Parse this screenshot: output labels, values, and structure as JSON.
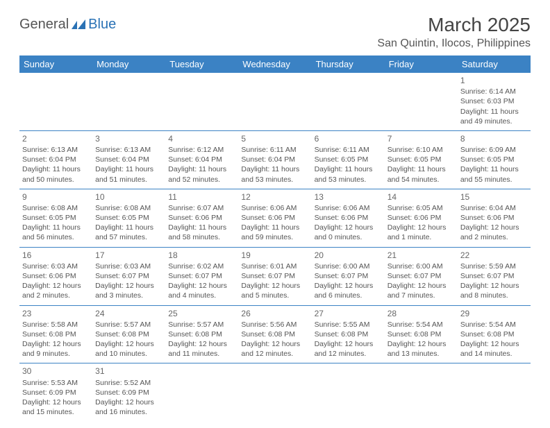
{
  "logo": {
    "text1": "General",
    "text2": "Blue"
  },
  "title": "March 2025",
  "location": "San Quintin, Ilocos, Philippines",
  "colors": {
    "header_bg": "#3b82c4",
    "header_fg": "#ffffff",
    "border": "#3b82c4",
    "logo_blue": "#2a72b5",
    "text": "#555555"
  },
  "dayHeaders": [
    "Sunday",
    "Monday",
    "Tuesday",
    "Wednesday",
    "Thursday",
    "Friday",
    "Saturday"
  ],
  "weeks": [
    [
      null,
      null,
      null,
      null,
      null,
      null,
      {
        "n": "1",
        "sr": "6:14 AM",
        "ss": "6:03 PM",
        "dl": "11 hours and 49 minutes."
      }
    ],
    [
      {
        "n": "2",
        "sr": "6:13 AM",
        "ss": "6:04 PM",
        "dl": "11 hours and 50 minutes."
      },
      {
        "n": "3",
        "sr": "6:13 AM",
        "ss": "6:04 PM",
        "dl": "11 hours and 51 minutes."
      },
      {
        "n": "4",
        "sr": "6:12 AM",
        "ss": "6:04 PM",
        "dl": "11 hours and 52 minutes."
      },
      {
        "n": "5",
        "sr": "6:11 AM",
        "ss": "6:04 PM",
        "dl": "11 hours and 53 minutes."
      },
      {
        "n": "6",
        "sr": "6:11 AM",
        "ss": "6:05 PM",
        "dl": "11 hours and 53 minutes."
      },
      {
        "n": "7",
        "sr": "6:10 AM",
        "ss": "6:05 PM",
        "dl": "11 hours and 54 minutes."
      },
      {
        "n": "8",
        "sr": "6:09 AM",
        "ss": "6:05 PM",
        "dl": "11 hours and 55 minutes."
      }
    ],
    [
      {
        "n": "9",
        "sr": "6:08 AM",
        "ss": "6:05 PM",
        "dl": "11 hours and 56 minutes."
      },
      {
        "n": "10",
        "sr": "6:08 AM",
        "ss": "6:05 PM",
        "dl": "11 hours and 57 minutes."
      },
      {
        "n": "11",
        "sr": "6:07 AM",
        "ss": "6:06 PM",
        "dl": "11 hours and 58 minutes."
      },
      {
        "n": "12",
        "sr": "6:06 AM",
        "ss": "6:06 PM",
        "dl": "11 hours and 59 minutes."
      },
      {
        "n": "13",
        "sr": "6:06 AM",
        "ss": "6:06 PM",
        "dl": "12 hours and 0 minutes."
      },
      {
        "n": "14",
        "sr": "6:05 AM",
        "ss": "6:06 PM",
        "dl": "12 hours and 1 minute."
      },
      {
        "n": "15",
        "sr": "6:04 AM",
        "ss": "6:06 PM",
        "dl": "12 hours and 2 minutes."
      }
    ],
    [
      {
        "n": "16",
        "sr": "6:03 AM",
        "ss": "6:06 PM",
        "dl": "12 hours and 2 minutes."
      },
      {
        "n": "17",
        "sr": "6:03 AM",
        "ss": "6:07 PM",
        "dl": "12 hours and 3 minutes."
      },
      {
        "n": "18",
        "sr": "6:02 AM",
        "ss": "6:07 PM",
        "dl": "12 hours and 4 minutes."
      },
      {
        "n": "19",
        "sr": "6:01 AM",
        "ss": "6:07 PM",
        "dl": "12 hours and 5 minutes."
      },
      {
        "n": "20",
        "sr": "6:00 AM",
        "ss": "6:07 PM",
        "dl": "12 hours and 6 minutes."
      },
      {
        "n": "21",
        "sr": "6:00 AM",
        "ss": "6:07 PM",
        "dl": "12 hours and 7 minutes."
      },
      {
        "n": "22",
        "sr": "5:59 AM",
        "ss": "6:07 PM",
        "dl": "12 hours and 8 minutes."
      }
    ],
    [
      {
        "n": "23",
        "sr": "5:58 AM",
        "ss": "6:08 PM",
        "dl": "12 hours and 9 minutes."
      },
      {
        "n": "24",
        "sr": "5:57 AM",
        "ss": "6:08 PM",
        "dl": "12 hours and 10 minutes."
      },
      {
        "n": "25",
        "sr": "5:57 AM",
        "ss": "6:08 PM",
        "dl": "12 hours and 11 minutes."
      },
      {
        "n": "26",
        "sr": "5:56 AM",
        "ss": "6:08 PM",
        "dl": "12 hours and 12 minutes."
      },
      {
        "n": "27",
        "sr": "5:55 AM",
        "ss": "6:08 PM",
        "dl": "12 hours and 12 minutes."
      },
      {
        "n": "28",
        "sr": "5:54 AM",
        "ss": "6:08 PM",
        "dl": "12 hours and 13 minutes."
      },
      {
        "n": "29",
        "sr": "5:54 AM",
        "ss": "6:08 PM",
        "dl": "12 hours and 14 minutes."
      }
    ],
    [
      {
        "n": "30",
        "sr": "5:53 AM",
        "ss": "6:09 PM",
        "dl": "12 hours and 15 minutes."
      },
      {
        "n": "31",
        "sr": "5:52 AM",
        "ss": "6:09 PM",
        "dl": "12 hours and 16 minutes."
      },
      null,
      null,
      null,
      null,
      null
    ]
  ],
  "labels": {
    "sunrise": "Sunrise:",
    "sunset": "Sunset:",
    "daylight": "Daylight:"
  }
}
